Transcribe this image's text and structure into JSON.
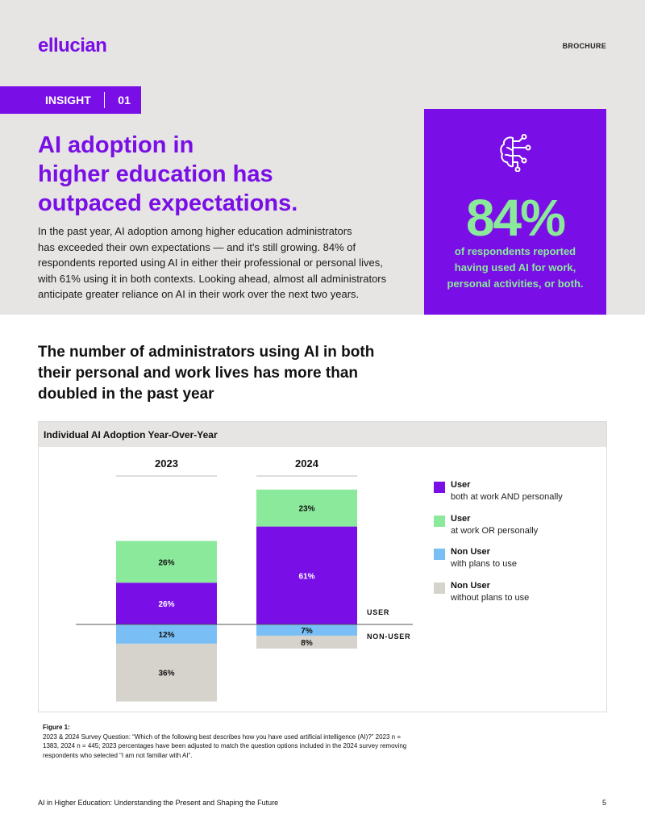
{
  "header": {
    "logo_text": "ellucian",
    "doc_type": "BROCHURE"
  },
  "insight": {
    "label": "INSIGHT",
    "number": "01"
  },
  "title_lines": [
    "AI adoption in",
    "higher education has",
    "outpaced expectations."
  ],
  "intro_lines": [
    "In the past year, AI adoption among higher education administrators",
    "has exceeded their own expectations — and it's still growing. 84% of",
    "respondents reported using AI in either their professional or personal lives,",
    "with 61% using it in both contexts. Looking ahead, almost all administrators",
    "anticipate greater reliance on AI in their work over the next two years."
  ],
  "stat": {
    "icon": "brain-circuit-icon",
    "value": "84%",
    "desc_lines": [
      "of respondents reported",
      "having used AI for work,",
      "personal activities, or both."
    ]
  },
  "subtitle_lines": [
    "The number of administrators using AI in both",
    "their personal and work lives has more than",
    "doubled in the past year"
  ],
  "chart_data": {
    "type": "bar",
    "stacked": true,
    "diverging": true,
    "title": "Individual AI Adoption Year-Over-Year",
    "categories": [
      "2023",
      "2024"
    ],
    "series": [
      {
        "name": "User both at work AND personally",
        "group": "USER",
        "color": "#7a0ee6",
        "text_color": "#ffffff",
        "values": [
          26,
          61
        ]
      },
      {
        "name": "User at work OR personally",
        "group": "USER",
        "color": "#8be99b",
        "text_color": "#111111",
        "values": [
          26,
          23
        ]
      },
      {
        "name": "Non User with plans to use",
        "group": "NON-USER",
        "color": "#79bff5",
        "text_color": "#111111",
        "values": [
          12,
          7
        ]
      },
      {
        "name": "Non User without plans to use",
        "group": "NON-USER",
        "color": "#d6d2cc",
        "text_color": "#111111",
        "values": [
          36,
          8
        ]
      }
    ],
    "group_labels": [
      "USER",
      "NON-USER"
    ],
    "data_labels": [
      [
        "26%",
        "26%",
        "12%",
        "36%"
      ],
      [
        "61%",
        "23%",
        "7%",
        "8%"
      ]
    ],
    "legend": [
      {
        "title": "User",
        "subtitle": "both at work AND personally",
        "color": "#7a0ee6"
      },
      {
        "title": "User",
        "subtitle": "at work OR personally",
        "color": "#8be99b"
      },
      {
        "title": "Non User",
        "subtitle": "with plans to use",
        "color": "#79bff5"
      },
      {
        "title": "Non User",
        "subtitle": "without plans to use",
        "color": "#d6d2cc"
      }
    ],
    "legend_position": "right",
    "grid": false
  },
  "figure_note": {
    "title": "Figure 1:",
    "lines": [
      "2023 & 2024 Survey Question: “Which of the following best describes how you have used artificial intelligence (AI)?” 2023 n =",
      "1383, 2024 n = 445; 2023 percentages have been adjusted to match the question options included in the 2024 survey removing",
      "respondents who selected “I am not familiar with AI”."
    ]
  },
  "footer": {
    "left": "AI in Higher Education: Understanding the Present and Shaping the Future",
    "page": "5"
  }
}
